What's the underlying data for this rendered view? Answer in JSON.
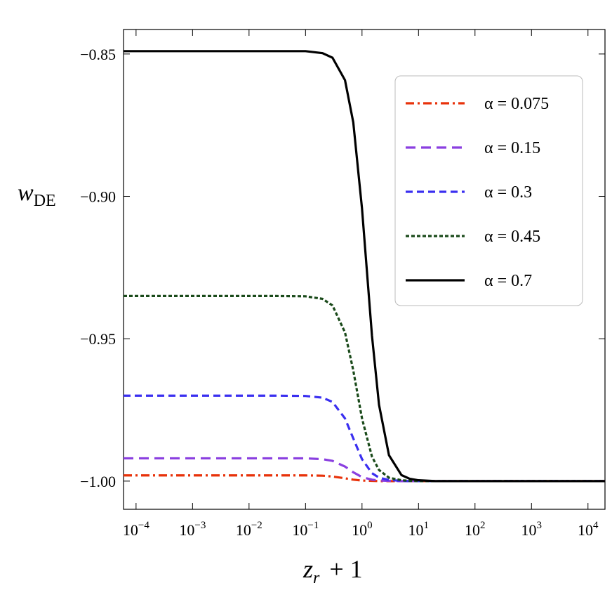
{
  "chart_data": {
    "type": "line",
    "xlabel": {
      "text": "z",
      "subscript": "r",
      "suffix": "+ 1"
    },
    "ylabel": {
      "text": "w",
      "subscript": "DE"
    },
    "xscale": "log",
    "x": [
      6e-05,
      0.0001,
      0.001,
      0.01,
      0.03,
      0.1,
      0.2,
      0.3,
      0.5,
      0.7,
      1,
      1.5,
      2,
      3,
      5,
      7,
      10,
      20,
      100,
      1000,
      10000,
      20000
    ],
    "series": [
      {
        "name": "α = 0.075",
        "color": "#e8320a",
        "linestyle": "dashdot",
        "values": [
          -0.998,
          -0.998,
          -0.998,
          -0.998,
          -0.998,
          -0.998,
          -0.9981,
          -0.9984,
          -0.999,
          -0.9995,
          -0.9998,
          -0.9999,
          -1,
          -1,
          -1,
          -1,
          -1,
          -1,
          -1,
          -1,
          -1,
          -1
        ]
      },
      {
        "name": "α = 0.15",
        "color": "#8a3fe0",
        "linestyle": "long-dashed",
        "values": [
          -0.992,
          -0.992,
          -0.992,
          -0.992,
          -0.992,
          -0.992,
          -0.9923,
          -0.9929,
          -0.9949,
          -0.9969,
          -0.9986,
          -0.9995,
          -0.9998,
          -0.9999,
          -1,
          -1,
          -1,
          -1,
          -1,
          -1,
          -1,
          -1
        ]
      },
      {
        "name": "α = 0.3",
        "color": "#3a2ff0",
        "linestyle": "dashed",
        "values": [
          -0.97,
          -0.97,
          -0.97,
          -0.97,
          -0.97,
          -0.9701,
          -0.9707,
          -0.9722,
          -0.978,
          -0.985,
          -0.9923,
          -0.9972,
          -0.9988,
          -0.9996,
          -0.9999,
          -1,
          -1,
          -1,
          -1,
          -1,
          -1,
          -1
        ]
      },
      {
        "name": "α = 0.45",
        "color": "#1a4a1a",
        "linestyle": "dotted",
        "values": [
          -0.935,
          -0.935,
          -0.935,
          -0.935,
          -0.935,
          -0.9351,
          -0.936,
          -0.9383,
          -0.9478,
          -0.9611,
          -0.978,
          -0.9914,
          -0.9961,
          -0.9988,
          -0.9997,
          -0.9999,
          -1,
          -1,
          -1,
          -1,
          -1,
          -1
        ]
      },
      {
        "name": "α = 0.7",
        "color": "#000000",
        "linestyle": "solid",
        "values": [
          -0.849,
          -0.849,
          -0.849,
          -0.849,
          -0.849,
          -0.849,
          -0.8497,
          -0.8513,
          -0.8592,
          -0.874,
          -0.9043,
          -0.9489,
          -0.9732,
          -0.9909,
          -0.9979,
          -0.9992,
          -0.9997,
          -1,
          -1,
          -1,
          -1,
          -1
        ]
      }
    ],
    "xlim": [
      6e-05,
      20000
    ],
    "ylim": [
      -1.0099,
      -0.8414
    ],
    "xticks": [
      {
        "value": 0.0001,
        "label": "10",
        "exponent": "−4"
      },
      {
        "value": 0.001,
        "label": "10",
        "exponent": "−3"
      },
      {
        "value": 0.01,
        "label": "10",
        "exponent": "−2"
      },
      {
        "value": 0.1,
        "label": "10",
        "exponent": "−1"
      },
      {
        "value": 1,
        "label": "10",
        "exponent": "0"
      },
      {
        "value": 10,
        "label": "10",
        "exponent": "1"
      },
      {
        "value": 100,
        "label": "10",
        "exponent": "2"
      },
      {
        "value": 1000,
        "label": "10",
        "exponent": "3"
      },
      {
        "value": 10000,
        "label": "10",
        "exponent": "4"
      }
    ],
    "yticks": [
      {
        "value": -0.85,
        "label": "−0.85"
      },
      {
        "value": -0.9,
        "label": "−0.90"
      },
      {
        "value": -0.95,
        "label": "−0.95"
      },
      {
        "value": -1,
        "label": "−1.00"
      }
    ],
    "grid": false,
    "legend": "upper right"
  }
}
